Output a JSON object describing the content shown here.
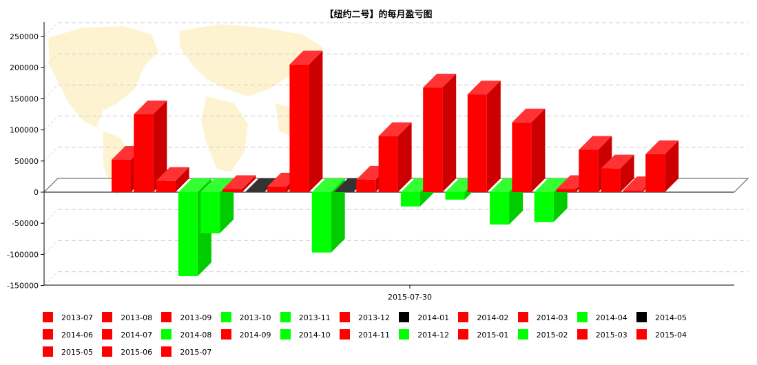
{
  "chart_data": {
    "type": "bar",
    "title": "【纽约二号】的每月盈亏图",
    "xlabel": "2015-07-30",
    "ylabel": "",
    "ylim": [
      -150000,
      250000
    ],
    "yticks": [
      250000,
      200000,
      150000,
      100000,
      50000,
      0,
      -50000,
      -100000,
      -150000
    ],
    "grid": true,
    "legend_position": "bottom",
    "categories": [
      "2013-07",
      "2013-08",
      "2013-09",
      "2013-10",
      "2013-11",
      "2013-12",
      "2014-01",
      "2014-02",
      "2014-03",
      "2014-04",
      "2014-05",
      "2014-06",
      "2014-07",
      "2014-08",
      "2014-09",
      "2014-10",
      "2014-11",
      "2014-12",
      "2015-01",
      "2015-02",
      "2015-03",
      "2015-04",
      "2015-05",
      "2015-06",
      "2015-07"
    ],
    "values": [
      52000,
      125000,
      18000,
      -135000,
      -66000,
      5000,
      0,
      9000,
      205000,
      -97000,
      0,
      20000,
      90000,
      -23000,
      168000,
      -12000,
      157000,
      -52000,
      112000,
      -48000,
      5000,
      68000,
      38000,
      3000,
      61000
    ],
    "colors": [
      "#ff0000",
      "#ff0000",
      "#ff0000",
      "#00ff00",
      "#00ff00",
      "#ff0000",
      "#000000",
      "#ff0000",
      "#ff0000",
      "#00ff00",
      "#000000",
      "#ff0000",
      "#ff0000",
      "#00ff00",
      "#ff0000",
      "#00ff00",
      "#ff0000",
      "#00ff00",
      "#ff0000",
      "#00ff00",
      "#ff0000",
      "#ff0000",
      "#ff0000",
      "#ff0000",
      "#ff0000"
    ]
  }
}
